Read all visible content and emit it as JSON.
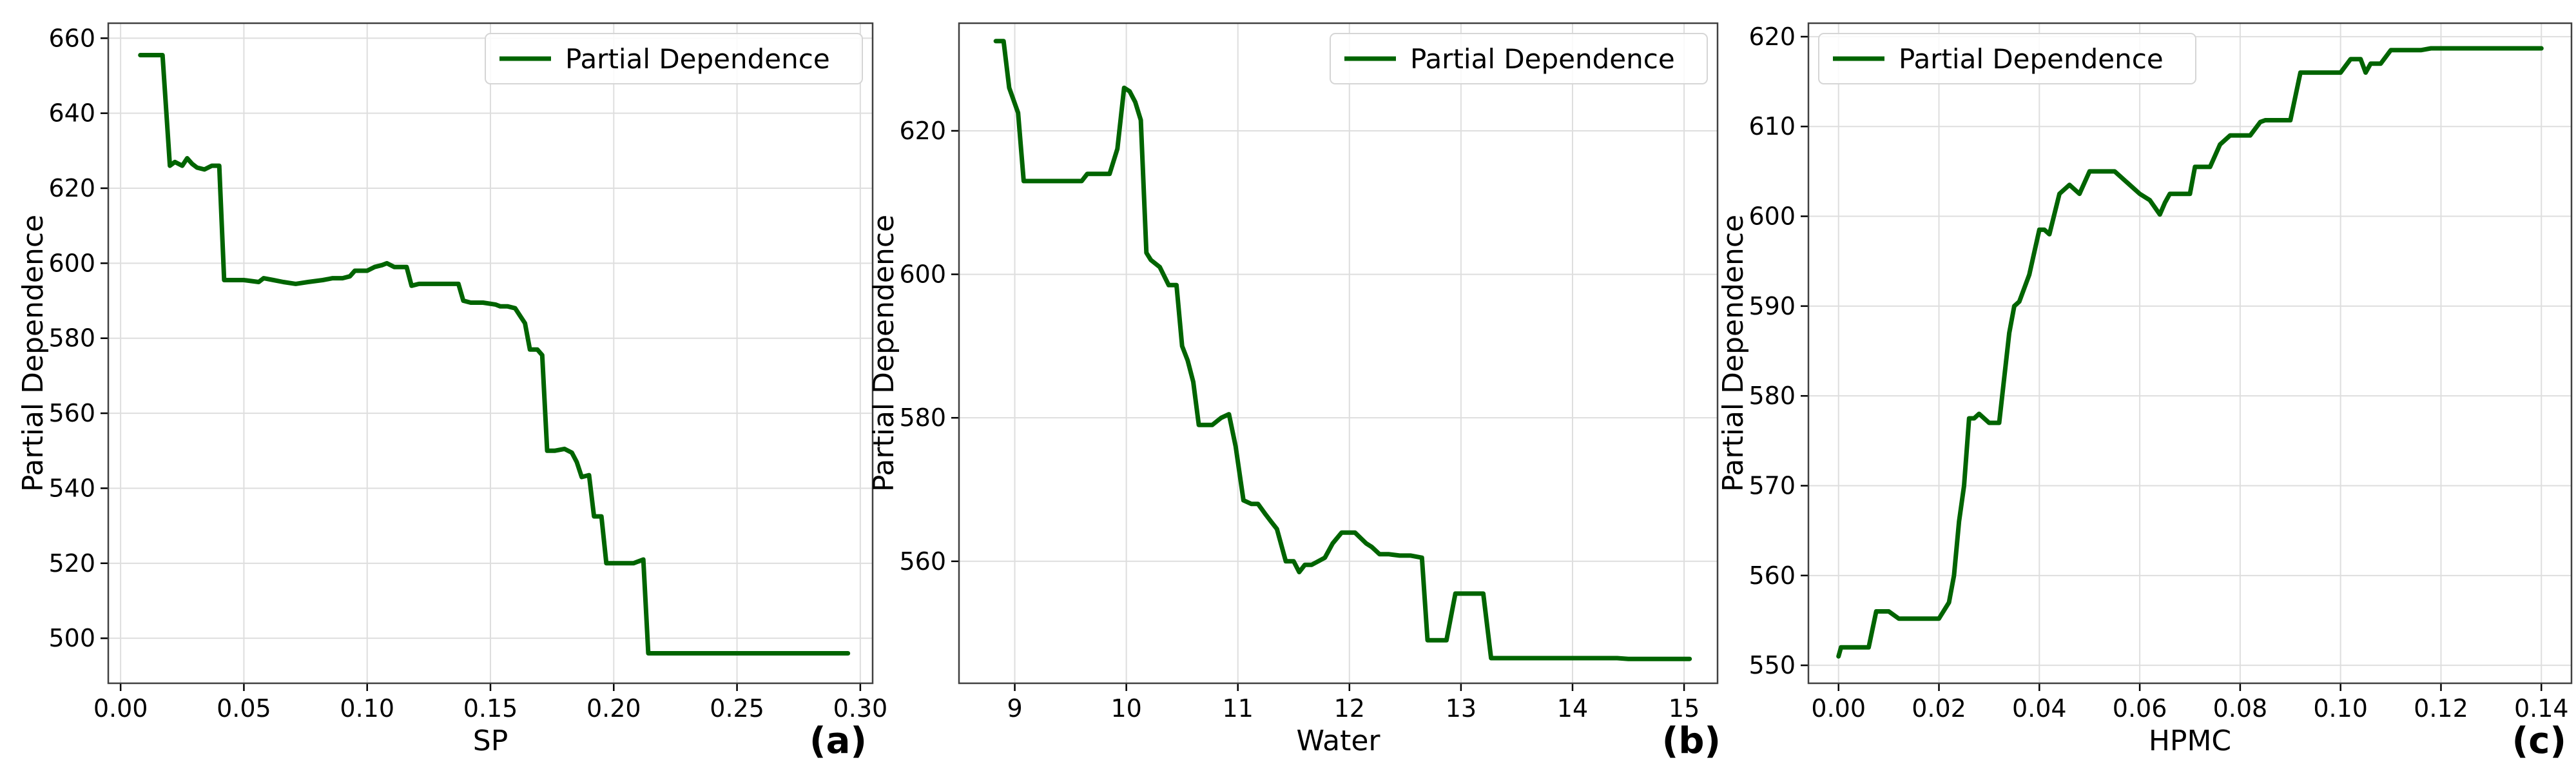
{
  "chart_data": [
    {
      "type": "line",
      "panel_label": "(a)",
      "xlabel": "SP",
      "ylabel": "Partial Dependence",
      "xlim": [
        -0.005,
        0.305
      ],
      "ylim": [
        488,
        664
      ],
      "xticks": [
        0.0,
        0.05,
        0.1,
        0.15,
        0.2,
        0.25,
        0.3
      ],
      "xtick_labels": [
        "0.00",
        "0.05",
        "0.10",
        "0.15",
        "0.20",
        "0.25",
        "0.30"
      ],
      "yticks": [
        500,
        520,
        540,
        560,
        580,
        600,
        620,
        640,
        660
      ],
      "ytick_labels": [
        "500",
        "520",
        "540",
        "560",
        "580",
        "600",
        "620",
        "640",
        "660"
      ],
      "grid": true,
      "legend_position": "upper-right",
      "series": [
        {
          "name": "Partial Dependence",
          "color": "#006400",
          "x": [
            0.008,
            0.017,
            0.02,
            0.022,
            0.025,
            0.027,
            0.029,
            0.031,
            0.034,
            0.037,
            0.04,
            0.042,
            0.044,
            0.05,
            0.056,
            0.058,
            0.062,
            0.066,
            0.071,
            0.076,
            0.082,
            0.086,
            0.09,
            0.093,
            0.095,
            0.097,
            0.1,
            0.103,
            0.106,
            0.108,
            0.111,
            0.113,
            0.116,
            0.118,
            0.121,
            0.124,
            0.128,
            0.133,
            0.137,
            0.139,
            0.142,
            0.147,
            0.152,
            0.154,
            0.157,
            0.16,
            0.162,
            0.164,
            0.166,
            0.169,
            0.171,
            0.173,
            0.176,
            0.18,
            0.183,
            0.185,
            0.187,
            0.19,
            0.192,
            0.195,
            0.197,
            0.199,
            0.202,
            0.205,
            0.208,
            0.212,
            0.214,
            0.217,
            0.22,
            0.24,
            0.26,
            0.28,
            0.295
          ],
          "y": [
            655.5,
            655.5,
            626,
            627,
            626,
            628,
            626.5,
            625.5,
            625,
            626,
            626,
            595.5,
            595.5,
            595.5,
            595,
            596,
            595.5,
            595,
            594.5,
            595,
            595.5,
            596,
            596,
            596.5,
            598,
            598,
            598,
            599,
            599.5,
            600,
            599,
            599,
            599,
            594,
            594.5,
            594.5,
            594.5,
            594.5,
            594.5,
            590,
            589.5,
            589.5,
            589,
            588.5,
            588.5,
            588,
            586,
            584,
            577,
            577,
            575.5,
            550,
            550,
            550.5,
            549.5,
            547,
            543,
            543.5,
            532.5,
            532.5,
            520,
            520,
            520,
            520,
            520,
            521,
            496,
            496,
            496,
            496,
            496,
            496,
            496
          ]
        }
      ]
    },
    {
      "type": "line",
      "panel_label": "(b)",
      "xlabel": "Water",
      "ylabel": "Partial Dependence",
      "xlim": [
        8.5,
        15.3
      ],
      "ylim": [
        543,
        635
      ],
      "xticks": [
        9,
        10,
        11,
        12,
        13,
        14,
        15
      ],
      "xtick_labels": [
        "9",
        "10",
        "11",
        "12",
        "13",
        "14",
        "15"
      ],
      "yticks": [
        560,
        580,
        600,
        620
      ],
      "ytick_labels": [
        "560",
        "580",
        "600",
        "620"
      ],
      "grid": true,
      "legend_position": "upper-right",
      "series": [
        {
          "name": "Partial Dependence",
          "color": "#006400",
          "x": [
            8.83,
            8.9,
            8.95,
            9.03,
            9.08,
            9.15,
            9.3,
            9.5,
            9.6,
            9.65,
            9.7,
            9.85,
            9.92,
            9.98,
            10.03,
            10.08,
            10.13,
            10.18,
            10.22,
            10.3,
            10.38,
            10.45,
            10.5,
            10.55,
            10.6,
            10.65,
            10.7,
            10.77,
            10.85,
            10.92,
            10.98,
            11.05,
            11.12,
            11.18,
            11.25,
            11.3,
            11.35,
            11.43,
            11.5,
            11.55,
            11.6,
            11.66,
            11.72,
            11.78,
            11.85,
            11.93,
            11.98,
            12.05,
            12.15,
            12.2,
            12.27,
            12.35,
            12.45,
            12.55,
            12.65,
            12.7,
            12.75,
            12.87,
            12.95,
            13.0,
            13.1,
            13.2,
            13.27,
            13.5,
            14.0,
            14.4,
            14.5,
            15.05
          ],
          "y": [
            632.5,
            632.5,
            626,
            622.5,
            613,
            613,
            613,
            613,
            613,
            614,
            614,
            614,
            617.5,
            626,
            625.5,
            624,
            621.5,
            603,
            602,
            601,
            598.5,
            598.5,
            590,
            588,
            585,
            579,
            579,
            579,
            580,
            580.5,
            576,
            568.5,
            568,
            568,
            566.5,
            565.5,
            564.5,
            560,
            560,
            558.5,
            559.5,
            559.5,
            560,
            560.5,
            562.5,
            564,
            564,
            564,
            562.5,
            562,
            561,
            561,
            560.8,
            560.8,
            560.5,
            549,
            549,
            549,
            555.5,
            555.5,
            555.5,
            555.5,
            546.5,
            546.5,
            546.5,
            546.5,
            546.4,
            546.4
          ]
        }
      ]
    },
    {
      "type": "line",
      "panel_label": "(c)",
      "xlabel": "HPMC",
      "ylabel": "Partial Dependence",
      "xlim": [
        -0.006,
        0.146
      ],
      "ylim": [
        548,
        621.5
      ],
      "xticks": [
        0.0,
        0.02,
        0.04,
        0.06,
        0.08,
        0.1,
        0.12,
        0.14
      ],
      "xtick_labels": [
        "0.00",
        "0.02",
        "0.04",
        "0.06",
        "0.08",
        "0.10",
        "0.12",
        "0.14"
      ],
      "yticks": [
        550,
        560,
        570,
        580,
        590,
        600,
        610,
        620
      ],
      "ytick_labels": [
        "550",
        "560",
        "570",
        "580",
        "590",
        "600",
        "610",
        "620"
      ],
      "grid": true,
      "legend_position": "upper-left",
      "series": [
        {
          "name": "Partial Dependence",
          "color": "#006400",
          "x": [
            0.0,
            0.0005,
            0.006,
            0.0075,
            0.01,
            0.012,
            0.014,
            0.016,
            0.018,
            0.02,
            0.022,
            0.023,
            0.024,
            0.025,
            0.026,
            0.027,
            0.028,
            0.03,
            0.032,
            0.034,
            0.035,
            0.036,
            0.038,
            0.04,
            0.041,
            0.042,
            0.044,
            0.045,
            0.046,
            0.047,
            0.048,
            0.05,
            0.051,
            0.052,
            0.055,
            0.06,
            0.062,
            0.064,
            0.065,
            0.066,
            0.067,
            0.07,
            0.071,
            0.072,
            0.074,
            0.076,
            0.078,
            0.082,
            0.084,
            0.085,
            0.086,
            0.09,
            0.092,
            0.093,
            0.095,
            0.1,
            0.102,
            0.104,
            0.105,
            0.106,
            0.108,
            0.11,
            0.111,
            0.116,
            0.118,
            0.12,
            0.13,
            0.14
          ],
          "y": [
            551,
            552,
            552,
            556,
            556,
            555.2,
            555.2,
            555.2,
            555.2,
            555.2,
            557,
            560,
            566,
            570,
            577.5,
            577.5,
            578,
            577,
            577,
            587,
            590,
            590.5,
            593.5,
            598.5,
            598.5,
            598,
            602.5,
            603,
            603.5,
            603,
            602.5,
            605,
            605,
            605,
            605,
            602.5,
            601.8,
            600.2,
            601.5,
            602.5,
            602.5,
            602.5,
            605.5,
            605.5,
            605.5,
            608,
            609,
            609,
            610.5,
            610.7,
            610.7,
            610.7,
            616,
            616,
            616,
            616,
            617.5,
            617.5,
            616,
            617,
            617,
            618.5,
            618.5,
            618.5,
            618.7,
            618.7,
            618.7,
            618.7
          ]
        }
      ]
    }
  ]
}
